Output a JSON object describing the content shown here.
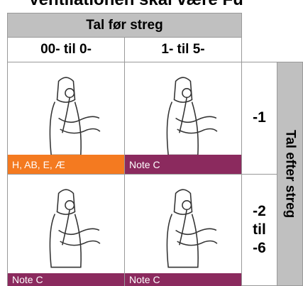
{
  "title": "Ventilationen skal være Fu",
  "header": {
    "group": "Tal før streg",
    "columns": [
      "00- til 0-",
      "1- til 5-"
    ]
  },
  "side_label": "Tal efter streg",
  "rows": [
    {
      "label": "-1",
      "notes": [
        "H, AB, E, Æ",
        "Note C"
      ]
    },
    {
      "label": "-2 til -6",
      "notes": [
        "Note C",
        "Note C"
      ]
    }
  ]
}
